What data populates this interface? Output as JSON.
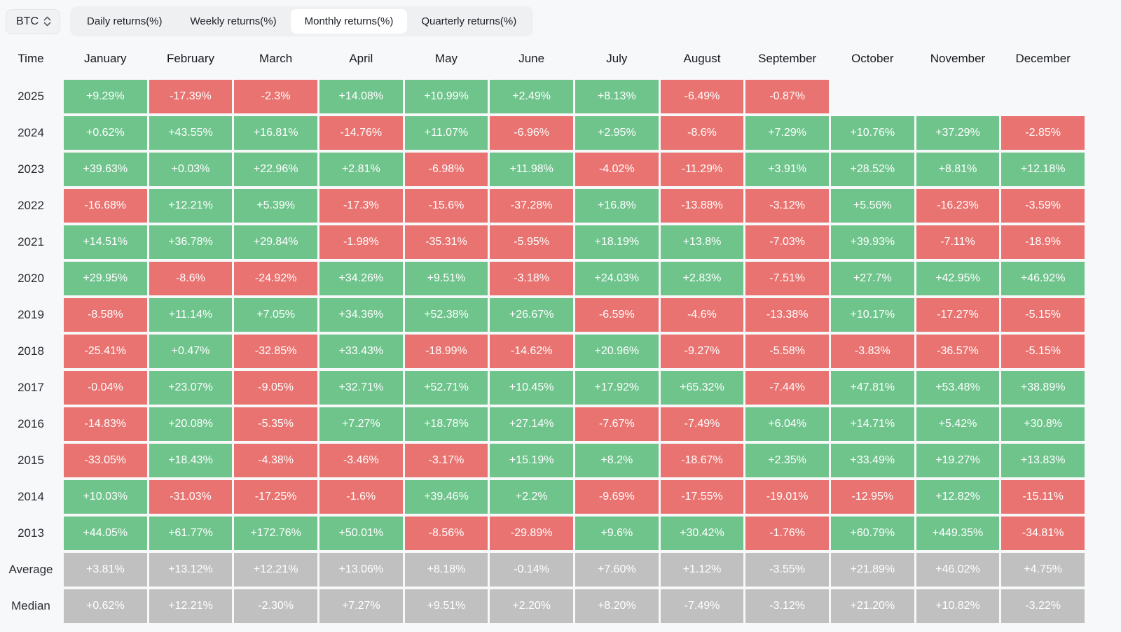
{
  "toolbar": {
    "coin_selector": {
      "label": "BTC"
    },
    "tabs": [
      {
        "label": "Daily returns(%)",
        "active": false
      },
      {
        "label": "Weekly returns(%)",
        "active": false
      },
      {
        "label": "Monthly returns(%)",
        "active": true
      },
      {
        "label": "Quarterly returns(%)",
        "active": false
      }
    ]
  },
  "colors": {
    "positive": "#6fc48c",
    "negative": "#e97370",
    "summary": "#c0c0c0",
    "page_background": "#f7f8f9",
    "active_tab_background": "#ffffff"
  },
  "table": {
    "time_header": "Time",
    "months": [
      "January",
      "February",
      "March",
      "April",
      "May",
      "June",
      "July",
      "August",
      "September",
      "October",
      "November",
      "December"
    ],
    "rows": [
      {
        "label": "2025",
        "type": "year",
        "values": [
          "+9.29%",
          "-17.39%",
          "-2.3%",
          "+14.08%",
          "+10.99%",
          "+2.49%",
          "+8.13%",
          "-6.49%",
          "-0.87%",
          "",
          "",
          ""
        ]
      },
      {
        "label": "2024",
        "type": "year",
        "values": [
          "+0.62%",
          "+43.55%",
          "+16.81%",
          "-14.76%",
          "+11.07%",
          "-6.96%",
          "+2.95%",
          "-8.6%",
          "+7.29%",
          "+10.76%",
          "+37.29%",
          "-2.85%"
        ]
      },
      {
        "label": "2023",
        "type": "year",
        "values": [
          "+39.63%",
          "+0.03%",
          "+22.96%",
          "+2.81%",
          "-6.98%",
          "+11.98%",
          "-4.02%",
          "-11.29%",
          "+3.91%",
          "+28.52%",
          "+8.81%",
          "+12.18%"
        ]
      },
      {
        "label": "2022",
        "type": "year",
        "values": [
          "-16.68%",
          "+12.21%",
          "+5.39%",
          "-17.3%",
          "-15.6%",
          "-37.28%",
          "+16.8%",
          "-13.88%",
          "-3.12%",
          "+5.56%",
          "-16.23%",
          "-3.59%"
        ]
      },
      {
        "label": "2021",
        "type": "year",
        "values": [
          "+14.51%",
          "+36.78%",
          "+29.84%",
          "-1.98%",
          "-35.31%",
          "-5.95%",
          "+18.19%",
          "+13.8%",
          "-7.03%",
          "+39.93%",
          "-7.11%",
          "-18.9%"
        ]
      },
      {
        "label": "2020",
        "type": "year",
        "values": [
          "+29.95%",
          "-8.6%",
          "-24.92%",
          "+34.26%",
          "+9.51%",
          "-3.18%",
          "+24.03%",
          "+2.83%",
          "-7.51%",
          "+27.7%",
          "+42.95%",
          "+46.92%"
        ]
      },
      {
        "label": "2019",
        "type": "year",
        "values": [
          "-8.58%",
          "+11.14%",
          "+7.05%",
          "+34.36%",
          "+52.38%",
          "+26.67%",
          "-6.59%",
          "-4.6%",
          "-13.38%",
          "+10.17%",
          "-17.27%",
          "-5.15%"
        ]
      },
      {
        "label": "2018",
        "type": "year",
        "values": [
          "-25.41%",
          "+0.47%",
          "-32.85%",
          "+33.43%",
          "-18.99%",
          "-14.62%",
          "+20.96%",
          "-9.27%",
          "-5.58%",
          "-3.83%",
          "-36.57%",
          "-5.15%"
        ]
      },
      {
        "label": "2017",
        "type": "year",
        "values": [
          "-0.04%",
          "+23.07%",
          "-9.05%",
          "+32.71%",
          "+52.71%",
          "+10.45%",
          "+17.92%",
          "+65.32%",
          "-7.44%",
          "+47.81%",
          "+53.48%",
          "+38.89%"
        ]
      },
      {
        "label": "2016",
        "type": "year",
        "values": [
          "-14.83%",
          "+20.08%",
          "-5.35%",
          "+7.27%",
          "+18.78%",
          "+27.14%",
          "-7.67%",
          "-7.49%",
          "+6.04%",
          "+14.71%",
          "+5.42%",
          "+30.8%"
        ]
      },
      {
        "label": "2015",
        "type": "year",
        "values": [
          "-33.05%",
          "+18.43%",
          "-4.38%",
          "-3.46%",
          "-3.17%",
          "+15.19%",
          "+8.2%",
          "-18.67%",
          "+2.35%",
          "+33.49%",
          "+19.27%",
          "+13.83%"
        ]
      },
      {
        "label": "2014",
        "type": "year",
        "values": [
          "+10.03%",
          "-31.03%",
          "-17.25%",
          "-1.6%",
          "+39.46%",
          "+2.2%",
          "-9.69%",
          "-17.55%",
          "-19.01%",
          "-12.95%",
          "+12.82%",
          "-15.11%"
        ]
      },
      {
        "label": "2013",
        "type": "year",
        "values": [
          "+44.05%",
          "+61.77%",
          "+172.76%",
          "+50.01%",
          "-8.56%",
          "-29.89%",
          "+9.6%",
          "+30.42%",
          "-1.76%",
          "+60.79%",
          "+449.35%",
          "-34.81%"
        ]
      },
      {
        "label": "Average",
        "type": "summary",
        "values": [
          "+3.81%",
          "+13.12%",
          "+12.21%",
          "+13.06%",
          "+8.18%",
          "-0.14%",
          "+7.60%",
          "+1.12%",
          "-3.55%",
          "+21.89%",
          "+46.02%",
          "+4.75%"
        ]
      },
      {
        "label": "Median",
        "type": "summary",
        "values": [
          "+0.62%",
          "+12.21%",
          "-2.30%",
          "+7.27%",
          "+9.51%",
          "+2.20%",
          "+8.20%",
          "-7.49%",
          "-3.12%",
          "+21.20%",
          "+10.82%",
          "-3.22%"
        ]
      }
    ]
  }
}
